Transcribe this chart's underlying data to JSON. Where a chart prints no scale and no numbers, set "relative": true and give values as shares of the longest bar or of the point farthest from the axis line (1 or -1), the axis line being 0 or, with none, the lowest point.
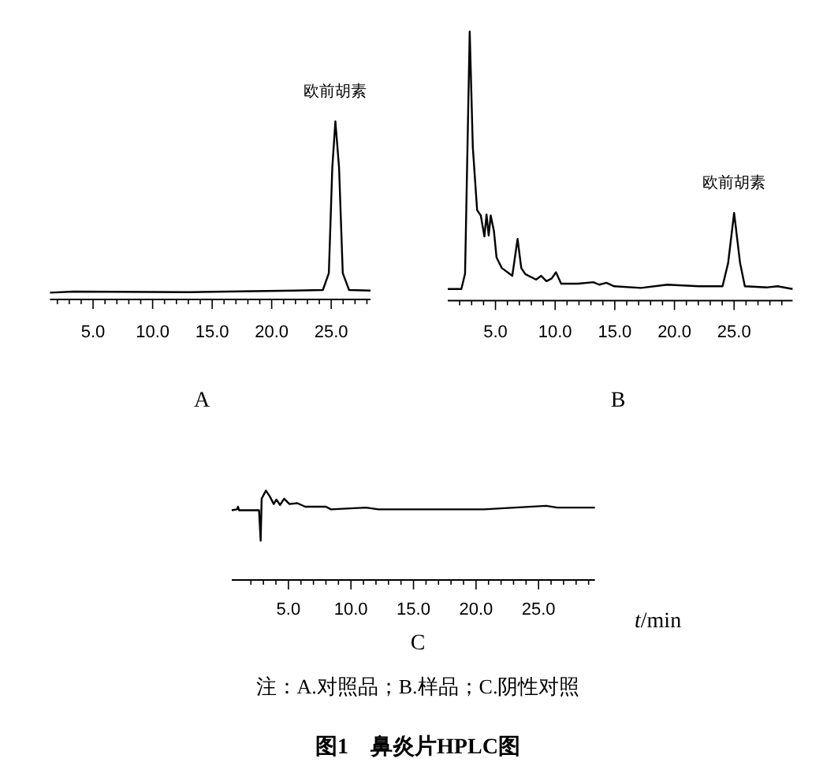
{
  "chart_data": [
    {
      "type": "line",
      "relative": true,
      "title": "A",
      "xlim": [
        1.38,
        28.3
      ],
      "xticks": [
        {
          "value": 2,
          "label": null
        },
        {
          "value": 3,
          "label": null
        },
        {
          "value": 4,
          "label": null
        },
        {
          "value": 5,
          "label": "5.0"
        },
        {
          "value": 6,
          "label": null
        },
        {
          "value": 7,
          "label": null
        },
        {
          "value": 8,
          "label": null
        },
        {
          "value": 9,
          "label": null
        },
        {
          "value": 10,
          "label": "10.0"
        },
        {
          "value": 11,
          "label": null
        },
        {
          "value": 12,
          "label": null
        },
        {
          "value": 13,
          "label": null
        },
        {
          "value": 14,
          "label": null
        },
        {
          "value": 15,
          "label": "15.0"
        },
        {
          "value": 16,
          "label": null
        },
        {
          "value": 17,
          "label": null
        },
        {
          "value": 18,
          "label": null
        },
        {
          "value": 19,
          "label": null
        },
        {
          "value": 20,
          "label": "20.0"
        },
        {
          "value": 21,
          "label": null
        },
        {
          "value": 22,
          "label": null
        },
        {
          "value": 23,
          "label": null
        },
        {
          "value": 24,
          "label": null
        },
        {
          "value": 25,
          "label": "25.0"
        },
        {
          "value": 26,
          "label": null
        },
        {
          "value": 27,
          "label": null
        },
        {
          "value": 28,
          "label": null
        }
      ],
      "series": [
        {
          "color": "#000000",
          "x": [
            1.38,
            3.37,
            13.1,
            21.9,
            24.3,
            24.8,
            25.09,
            25.35,
            25.66,
            25.97,
            26.5,
            28.3
          ],
          "values": [
            0.038,
            0.044,
            0.041,
            0.05,
            0.053,
            0.148,
            0.74,
            1.0,
            0.74,
            0.148,
            0.053,
            0.05
          ]
        }
      ],
      "annotations": [
        {
          "text": "欧前胡素",
          "x": 25.35,
          "y": 1.0
        }
      ]
    },
    {
      "type": "line",
      "relative": true,
      "title": "B",
      "xlim": [
        1.0,
        29.9
      ],
      "xticks": [
        {
          "value": 2,
          "label": null
        },
        {
          "value": 3,
          "label": null
        },
        {
          "value": 4,
          "label": null
        },
        {
          "value": 5,
          "label": "5.0"
        },
        {
          "value": 6,
          "label": null
        },
        {
          "value": 7,
          "label": null
        },
        {
          "value": 8,
          "label": null
        },
        {
          "value": 9,
          "label": null
        },
        {
          "value": 10,
          "label": "10.0"
        },
        {
          "value": 11,
          "label": null
        },
        {
          "value": 12,
          "label": null
        },
        {
          "value": 13,
          "label": null
        },
        {
          "value": 14,
          "label": null
        },
        {
          "value": 15,
          "label": "15.0"
        },
        {
          "value": 16,
          "label": null
        },
        {
          "value": 17,
          "label": null
        },
        {
          "value": 18,
          "label": null
        },
        {
          "value": 19,
          "label": null
        },
        {
          "value": 20,
          "label": "20.0"
        },
        {
          "value": 21,
          "label": null
        },
        {
          "value": 22,
          "label": null
        },
        {
          "value": 23,
          "label": null
        },
        {
          "value": 24,
          "label": null
        },
        {
          "value": 25,
          "label": "25.0"
        },
        {
          "value": 26,
          "label": null
        },
        {
          "value": 27,
          "label": null
        },
        {
          "value": 28,
          "label": null
        },
        {
          "value": 29,
          "label": null
        }
      ],
      "series": [
        {
          "color": "#000000",
          "x": [
            1.0,
            2.14,
            2.45,
            2.84,
            3.1,
            3.46,
            3.77,
            4.07,
            4.25,
            4.43,
            4.6,
            4.87,
            5.09,
            5.53,
            6.41,
            6.85,
            7.16,
            7.5,
            8.4,
            8.83,
            9.27,
            9.71,
            10.07,
            10.5,
            11.9,
            13.2,
            13.7,
            14.3,
            14.95,
            17.2,
            19.4,
            22.05,
            24.03,
            24.5,
            25.0,
            25.5,
            25.9,
            27.8,
            28.65,
            29.9
          ],
          "values": [
            0.043,
            0.043,
            0.1,
            1.0,
            0.57,
            0.336,
            0.316,
            0.238,
            0.32,
            0.242,
            0.316,
            0.258,
            0.16,
            0.121,
            0.092,
            0.229,
            0.121,
            0.098,
            0.078,
            0.092,
            0.072,
            0.082,
            0.105,
            0.0625,
            0.0625,
            0.068,
            0.059,
            0.066,
            0.053,
            0.047,
            0.059,
            0.053,
            0.053,
            0.14,
            0.326,
            0.14,
            0.053,
            0.049,
            0.053,
            0.043
          ]
        }
      ],
      "annotations": [
        {
          "text": "欧前胡素",
          "x": 25.0,
          "y": 0.326
        }
      ]
    },
    {
      "type": "line",
      "relative": true,
      "title": "C",
      "xlabel": "t/min",
      "xlim": [
        0.47,
        29.5
      ],
      "xticks": [
        {
          "value": 2,
          "label": null
        },
        {
          "value": 3,
          "label": null
        },
        {
          "value": 4,
          "label": null
        },
        {
          "value": 5,
          "label": "5.0"
        },
        {
          "value": 6,
          "label": null
        },
        {
          "value": 7,
          "label": null
        },
        {
          "value": 8,
          "label": null
        },
        {
          "value": 9,
          "label": null
        },
        {
          "value": 10,
          "label": "10.0"
        },
        {
          "value": 11,
          "label": null
        },
        {
          "value": 12,
          "label": null
        },
        {
          "value": 13,
          "label": null
        },
        {
          "value": 14,
          "label": null
        },
        {
          "value": 15,
          "label": "15.0"
        },
        {
          "value": 16,
          "label": null
        },
        {
          "value": 17,
          "label": null
        },
        {
          "value": 18,
          "label": null
        },
        {
          "value": 19,
          "label": null
        },
        {
          "value": 20,
          "label": "20.0"
        },
        {
          "value": 21,
          "label": null
        },
        {
          "value": 22,
          "label": null
        },
        {
          "value": 23,
          "label": null
        },
        {
          "value": 24,
          "label": null
        },
        {
          "value": 25,
          "label": "25.0"
        },
        {
          "value": 26,
          "label": null
        },
        {
          "value": 27,
          "label": null
        },
        {
          "value": 28,
          "label": null
        },
        {
          "value": 29,
          "label": null
        }
      ],
      "series": [
        {
          "color": "#000000",
          "x": [
            0.47,
            0.89,
            0.97,
            1.06,
            2.65,
            2.78,
            2.86,
            3.2,
            3.49,
            3.83,
            4.04,
            4.33,
            4.66,
            5.08,
            5.71,
            6.34,
            8.0,
            8.4,
            11.2,
            12.2,
            20.6,
            25.6,
            26.5,
            29.5
          ],
          "values": [
            0.78,
            0.79,
            0.82,
            0.78,
            0.78,
            0.44,
            0.91,
            1.0,
            0.94,
            0.85,
            0.9,
            0.84,
            0.91,
            0.85,
            0.86,
            0.82,
            0.82,
            0.79,
            0.81,
            0.79,
            0.79,
            0.83,
            0.81,
            0.81
          ]
        }
      ],
      "annotations": [
        "注：A.对照品；B.样品；C.阴性对照",
        "图1　鼻炎片HPLC图"
      ]
    }
  ]
}
